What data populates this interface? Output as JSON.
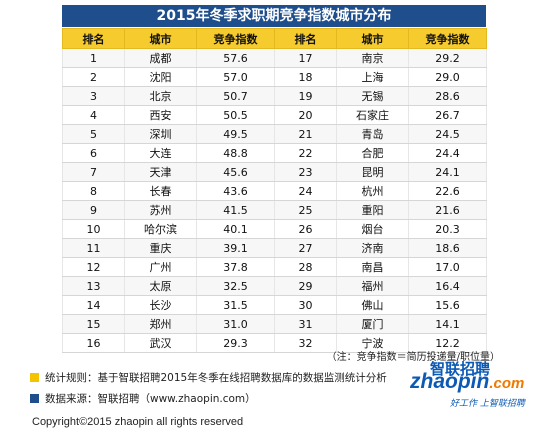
{
  "title": "2015年冬季求职期竞争指数城市分布",
  "table": {
    "headers": [
      "排名",
      "城市",
      "竞争指数",
      "排名",
      "城市",
      "竞争指数"
    ],
    "rows": [
      [
        "1",
        "成都",
        "57.6",
        "17",
        "南京",
        "29.2"
      ],
      [
        "2",
        "沈阳",
        "57.0",
        "18",
        "上海",
        "29.0"
      ],
      [
        "3",
        "北京",
        "50.7",
        "19",
        "无锡",
        "28.6"
      ],
      [
        "4",
        "西安",
        "50.5",
        "20",
        "石家庄",
        "26.7"
      ],
      [
        "5",
        "深圳",
        "49.5",
        "21",
        "青岛",
        "24.5"
      ],
      [
        "6",
        "大连",
        "48.8",
        "22",
        "合肥",
        "24.4"
      ],
      [
        "7",
        "天津",
        "45.6",
        "23",
        "昆明",
        "24.1"
      ],
      [
        "8",
        "长春",
        "43.6",
        "24",
        "杭州",
        "22.6"
      ],
      [
        "9",
        "苏州",
        "41.5",
        "25",
        "重阳",
        "21.6"
      ],
      [
        "10",
        "哈尔滨",
        "40.1",
        "26",
        "烟台",
        "20.3"
      ],
      [
        "11",
        "重庆",
        "39.1",
        "27",
        "济南",
        "18.6"
      ],
      [
        "12",
        "广州",
        "37.8",
        "28",
        "南昌",
        "17.0"
      ],
      [
        "13",
        "太原",
        "32.5",
        "29",
        "福州",
        "16.4"
      ],
      [
        "14",
        "长沙",
        "31.5",
        "30",
        "佛山",
        "15.6"
      ],
      [
        "15",
        "郑州",
        "31.0",
        "31",
        "厦门",
        "14.1"
      ],
      [
        "16",
        "武汉",
        "29.3",
        "32",
        "宁波",
        "12.2"
      ]
    ]
  },
  "note": "（注：竞争指数＝简历投递量/职位量）",
  "legend": {
    "stat_rule": "统计规则：基于智联招聘2015年冬季在线招聘数据库的数据监测统计分析",
    "data_source": "数据来源：智联招聘（www.zhaopin.com）",
    "colors": {
      "stat_rule": "#f5c400",
      "data_source": "#1f4e8c"
    }
  },
  "logo": {
    "brand": "智联招聘",
    "domain_main": "zhaopin",
    "domain_suffix": ".com",
    "slogan": "好工作  上智联招聘"
  },
  "copyright": "Copyright©2015 zhaopin all rights reserved",
  "colors": {
    "title_bg": "#1f4e8c",
    "header_bg": "#f5cb2e"
  }
}
